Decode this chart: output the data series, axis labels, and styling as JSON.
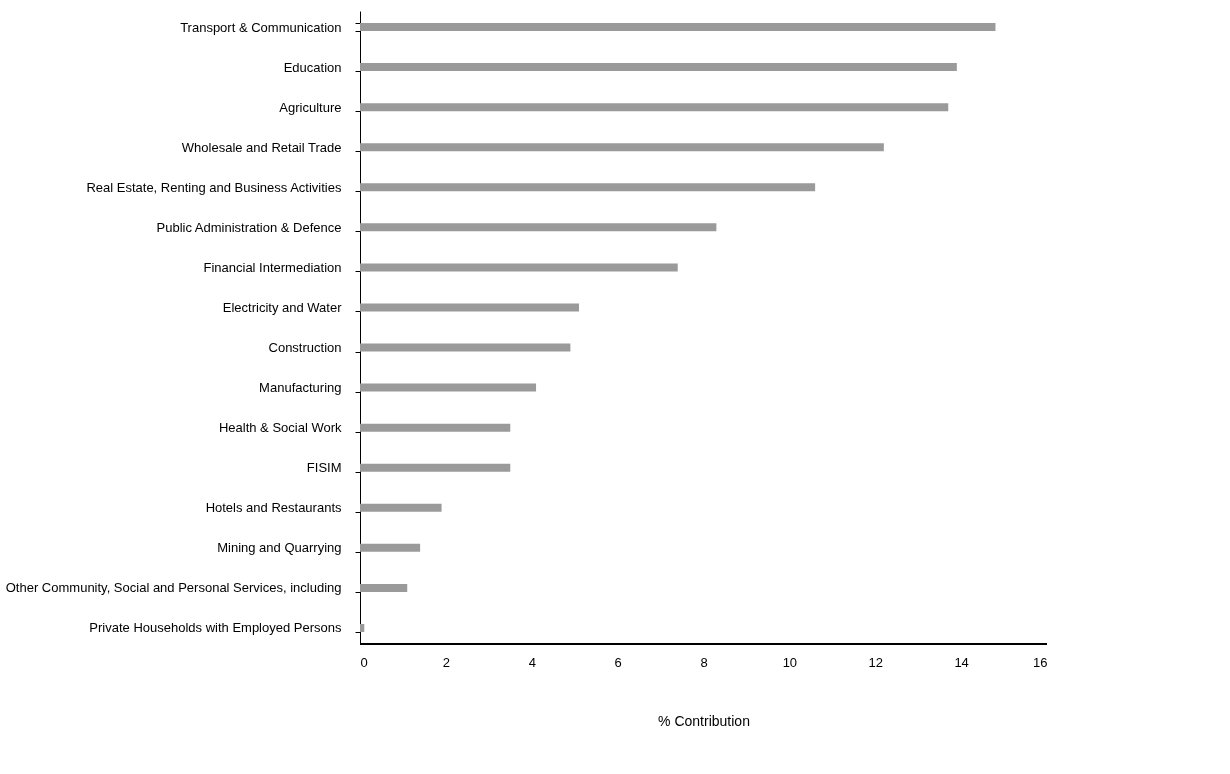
{
  "chart_data": {
    "type": "bar",
    "orientation": "horizontal",
    "xlabel": "% Contribution",
    "categories": [
      "Transport & Communication",
      "Education",
      "Agriculture",
      "Wholesale and Retail Trade",
      "Real Estate, Renting and Business Activities",
      "Public Administration & Defence",
      "Financial Intermediation",
      "Electricity and Water",
      "Construction",
      "Manufacturing",
      "Health & Social Work",
      "FISIM",
      "Hotels and Restaurants",
      "Mining and Quarrying",
      "Other Community, Social and Personal Services, including",
      "Private Households with Employed Persons"
    ],
    "values": [
      14.8,
      13.9,
      13.7,
      12.2,
      10.6,
      8.3,
      7.4,
      5.1,
      4.9,
      4.1,
      3.5,
      3.5,
      1.9,
      1.4,
      1.1,
      0.1
    ],
    "color": "#9a9a9a",
    "xlim": [
      0,
      16
    ],
    "xticks": [
      0,
      2,
      4,
      6,
      8,
      10,
      12,
      14,
      16
    ]
  }
}
